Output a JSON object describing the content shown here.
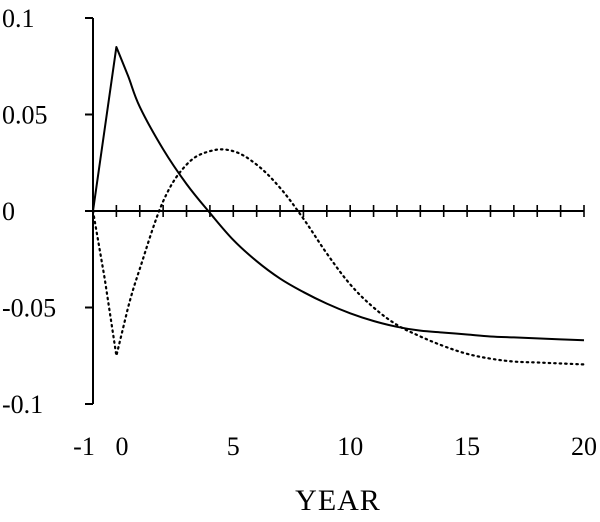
{
  "chart_data": {
    "type": "line",
    "title": "",
    "xlabel": "YEAR",
    "ylabel": "",
    "xlim": [
      -1,
      20
    ],
    "ylim": [
      -0.1,
      0.1
    ],
    "x_ticks": [
      -1,
      0,
      5,
      10,
      15,
      20
    ],
    "x_tick_labels": [
      "-1",
      "0",
      "5",
      "10",
      "15",
      "20"
    ],
    "y_ticks": [
      0.1,
      0.05,
      0,
      -0.05,
      -0.1
    ],
    "y_tick_labels": [
      "0.1",
      "0.05",
      "0",
      "-0.05",
      "-0.1"
    ],
    "x_minor_ticks_on_zero_line": [
      -1,
      0,
      1,
      2,
      3,
      4,
      5,
      6,
      7,
      8,
      9,
      10,
      11,
      12,
      13,
      14,
      15,
      16,
      17,
      18,
      19,
      20
    ],
    "grid": false,
    "legend": "none",
    "series": [
      {
        "style": "solid",
        "color": "#000000",
        "x": [
          -1,
          0,
          0.5,
          1,
          2,
          3,
          4,
          5,
          6,
          7,
          8,
          9,
          10,
          11,
          12,
          13,
          14,
          15,
          16,
          17,
          18,
          19,
          20
        ],
        "y": [
          0,
          0.085,
          0.07,
          0.054,
          0.032,
          0.014,
          -0.001,
          -0.015,
          -0.026,
          -0.035,
          -0.042,
          -0.048,
          -0.053,
          -0.057,
          -0.06,
          -0.062,
          -0.063,
          -0.064,
          -0.065,
          -0.0655,
          -0.066,
          -0.0665,
          -0.067
        ]
      },
      {
        "style": "dotted",
        "color": "#000000",
        "x": [
          -1,
          -0.5,
          0,
          0.5,
          1,
          2,
          3,
          4,
          5,
          6,
          7,
          8,
          9,
          10,
          11,
          12,
          13,
          14,
          15,
          16,
          17,
          18,
          19,
          20
        ],
        "y": [
          0,
          -0.035,
          -0.075,
          -0.05,
          -0.03,
          0.005,
          0.024,
          0.031,
          0.031,
          0.024,
          0.012,
          -0.004,
          -0.022,
          -0.038,
          -0.05,
          -0.059,
          -0.065,
          -0.07,
          -0.074,
          -0.0765,
          -0.078,
          -0.0785,
          -0.079,
          -0.0795
        ]
      }
    ]
  }
}
